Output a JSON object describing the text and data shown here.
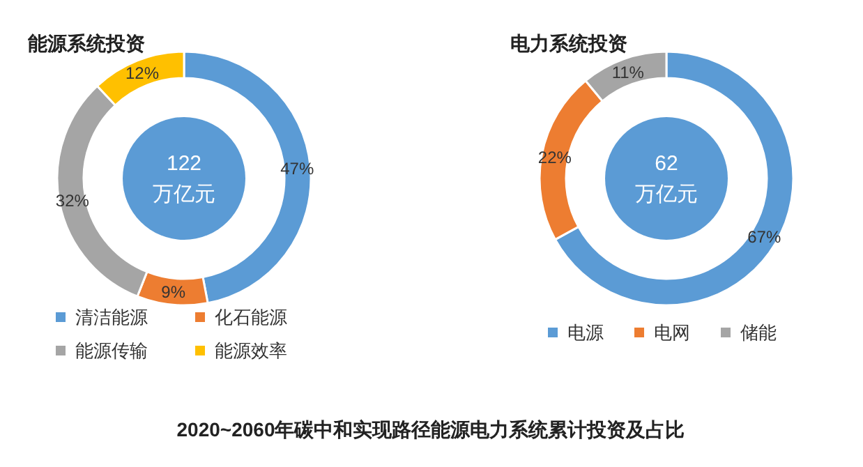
{
  "chart_data": [
    {
      "type": "donut",
      "title": "能源系统投资",
      "categories": [
        "清洁能源",
        "化石能源",
        "能源传输",
        "能源效率"
      ],
      "values": [
        47,
        9,
        32,
        12
      ],
      "colors": [
        "#5b9bd5",
        "#ed7d31",
        "#a5a5a5",
        "#ffc000"
      ],
      "value_labels": [
        "47%",
        "9%",
        "32%",
        "12%"
      ],
      "legend": "bottom",
      "annotations": [
        "122",
        "万亿元"
      ]
    },
    {
      "type": "donut",
      "title": "电力系统投资",
      "categories": [
        "电源",
        "电网",
        "储能"
      ],
      "values": [
        67,
        22,
        11
      ],
      "colors": [
        "#5b9bd5",
        "#ed7d31",
        "#a5a5a5"
      ],
      "value_labels": [
        "67%",
        "22%",
        "11%"
      ],
      "legend": "bottom",
      "annotations": [
        "62",
        "万亿元"
      ]
    },
    {
      "type": "other",
      "title": "2020~2060年碳中和实现路径能源电力系统累计投资及占比"
    }
  ]
}
